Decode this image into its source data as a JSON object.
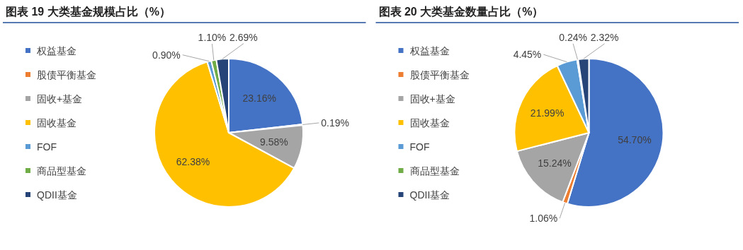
{
  "chart_data": [
    {
      "type": "pie",
      "title": "图表 19 大类基金规模占比（%）",
      "categories": [
        "权益基金",
        "股债平衡基金",
        "固收+基金",
        "固收基金",
        "FOF",
        "商品型基金",
        "QDII基金"
      ],
      "values": [
        23.16,
        0.19,
        9.58,
        62.38,
        0.9,
        1.1,
        2.69
      ],
      "value_labels": [
        "23.16%",
        "0.19%",
        "9.58%",
        "62.38%",
        "0.90%",
        "1.10%",
        "2.69%"
      ],
      "colors": [
        "#4472c4",
        "#ed7d31",
        "#a5a5a5",
        "#ffc000",
        "#5b9bd5",
        "#70ad47",
        "#264478"
      ],
      "legend": "left"
    },
    {
      "type": "pie",
      "title": "图表 20 大类基金数量占比（%）",
      "categories": [
        "权益基金",
        "股债平衡基金",
        "固收+基金",
        "固收基金",
        "FOF",
        "商品型基金",
        "QDII基金"
      ],
      "values": [
        54.7,
        1.06,
        15.24,
        21.99,
        4.45,
        0.24,
        2.32
      ],
      "value_labels": [
        "54.70%",
        "1.06%",
        "15.24%",
        "21.99%",
        "4.45%",
        "0.24%",
        "2.32%"
      ],
      "colors": [
        "#4472c4",
        "#ed7d31",
        "#a5a5a5",
        "#ffc000",
        "#5b9bd5",
        "#70ad47",
        "#264478"
      ],
      "legend": "left"
    }
  ]
}
